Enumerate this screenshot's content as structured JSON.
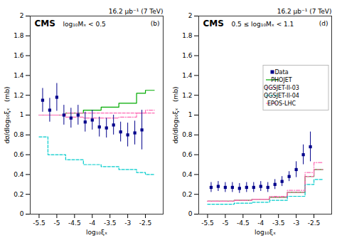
{
  "chart_data": [
    {
      "type": "step",
      "title": "16.2 μb⁻¹ (7 TeV)",
      "annotations": [
        "CMS",
        "log₁₀Mₓ < 0.5",
        "(b)"
      ],
      "xlabel": "log₁₀ξₓ",
      "ylabel": "dσ/dlog₁₀ξₓ   (mb)",
      "xlim": [
        -5.75,
        -2.0
      ],
      "ylim": [
        0,
        2
      ],
      "xticks": [
        -5.5,
        -5,
        -4.5,
        -4,
        -3.5,
        -3,
        -2.5
      ],
      "yticks": [
        0,
        0.2,
        0.4,
        0.6,
        0.8,
        1,
        1.2,
        1.4,
        1.6,
        1.8,
        2
      ],
      "series": [
        {
          "type": "step",
          "color": "#00AA00",
          "line_style": "solid",
          "bins": [
            -5.5,
            -5.25,
            -4.75,
            -4.25,
            -3.75,
            -3.25,
            -2.75,
            -2.5,
            -2.25
          ],
          "values": [
            1.0,
            1.0,
            1.02,
            1.05,
            1.08,
            1.12,
            1.22,
            1.25
          ]
        },
        {
          "type": "step",
          "color": "#FF69B4",
          "line_style": "dashed",
          "bins": [
            -5.5,
            -5.25,
            -4.75,
            -4.25,
            -3.75,
            -3.25,
            -2.75,
            -2.5,
            -2.25
          ],
          "values": [
            1.0,
            1.0,
            1.02,
            1.02,
            1.02,
            1.02,
            1.02,
            1.02
          ]
        },
        {
          "type": "step",
          "color": "#00CCCC",
          "line_style": "dashed",
          "bins": [
            -5.5,
            -5.25,
            -4.75,
            -4.25,
            -3.75,
            -3.25,
            -2.75,
            -2.5,
            -2.25
          ],
          "values": [
            0.78,
            0.6,
            0.55,
            0.5,
            0.48,
            0.45,
            0.42,
            0.4
          ]
        },
        {
          "type": "step",
          "color": "#FF69B4",
          "line_style": "dashdot",
          "bins": [
            -5.5,
            -5.25,
            -4.75,
            -4.25,
            -3.75,
            -3.25,
            -2.75,
            -2.5,
            -2.25
          ],
          "values": [
            1.0,
            1.0,
            0.98,
            0.97,
            0.97,
            0.98,
            1.02,
            1.05
          ]
        },
        {
          "type": "scatter",
          "color": "#00008B",
          "marker": "square",
          "x": [
            -5.4,
            -5.2,
            -5.0,
            -4.8,
            -4.6,
            -4.4,
            -4.2,
            -4.0,
            -3.8,
            -3.6,
            -3.4,
            -3.2,
            -3.0,
            -2.8,
            -2.6
          ],
          "values": [
            1.15,
            1.05,
            1.18,
            1.0,
            0.97,
            1.0,
            0.93,
            0.95,
            0.88,
            0.87,
            0.9,
            0.83,
            0.8,
            0.82,
            0.85
          ],
          "errors": [
            0.12,
            0.12,
            0.14,
            0.1,
            0.1,
            0.1,
            0.1,
            0.1,
            0.1,
            0.1,
            0.1,
            0.1,
            0.12,
            0.12,
            0.2
          ]
        }
      ]
    },
    {
      "type": "step",
      "title": "16.2 μb⁻¹ (7 TeV)",
      "annotations": [
        "CMS",
        "0.5 ≤ log₁₀Mₓ < 1.1",
        "(d)"
      ],
      "xlabel": "log₁₀ξₓ",
      "ylabel": "dσ/dlog₁₀ξₓ   (mb)",
      "xlim": [
        -5.75,
        -2.0
      ],
      "ylim": [
        0,
        2
      ],
      "xticks": [
        -5.5,
        -5,
        -4.5,
        -4,
        -3.5,
        -3,
        -2.5
      ],
      "yticks": [
        0,
        0.2,
        0.4,
        0.6,
        0.8,
        1,
        1.2,
        1.4,
        1.6,
        1.8,
        2
      ],
      "legend": "upper right",
      "series": [
        {
          "name": "Data",
          "type": "scatter",
          "color": "#00008B",
          "marker": "square",
          "x": [
            -5.4,
            -5.2,
            -5.0,
            -4.8,
            -4.6,
            -4.4,
            -4.2,
            -4.0,
            -3.8,
            -3.6,
            -3.4,
            -3.2,
            -3.0,
            -2.8,
            -2.6
          ],
          "values": [
            0.27,
            0.28,
            0.27,
            0.27,
            0.26,
            0.27,
            0.27,
            0.28,
            0.27,
            0.3,
            0.33,
            0.38,
            0.45,
            0.6,
            0.68
          ],
          "errors": [
            0.05,
            0.05,
            0.05,
            0.05,
            0.05,
            0.05,
            0.05,
            0.05,
            0.05,
            0.05,
            0.05,
            0.05,
            0.08,
            0.1,
            0.15
          ]
        },
        {
          "name": "PHOJET",
          "type": "step",
          "color": "#00AA00",
          "line_style": "solid",
          "bins": [
            -5.5,
            -5.25,
            -4.75,
            -4.25,
            -3.75,
            -3.25,
            -2.75,
            -2.5,
            -2.25
          ],
          "values": [
            0.13,
            0.13,
            0.14,
            0.15,
            0.17,
            0.22,
            0.38,
            0.45
          ]
        },
        {
          "name": "QGSJET-II-03",
          "type": "step",
          "color": "#FF69B4",
          "line_style": "dashed",
          "bins": [
            -5.5,
            -5.25,
            -4.75,
            -4.25,
            -3.75,
            -3.25,
            -2.75,
            -2.5,
            -2.25
          ],
          "values": [
            0.13,
            0.13,
            0.14,
            0.15,
            0.17,
            0.22,
            0.38,
            0.45
          ]
        },
        {
          "name": "QGSJET-II-04",
          "type": "step",
          "color": "#00CCCC",
          "line_style": "dashed",
          "bins": [
            -5.5,
            -5.25,
            -4.75,
            -4.25,
            -3.75,
            -3.25,
            -2.75,
            -2.5,
            -2.25
          ],
          "values": [
            0.1,
            0.1,
            0.11,
            0.12,
            0.14,
            0.18,
            0.3,
            0.35
          ]
        },
        {
          "name": "EPOS-LHC",
          "type": "step",
          "color": "#FF69B4",
          "line_style": "dashdot",
          "bins": [
            -5.5,
            -5.25,
            -4.75,
            -4.25,
            -3.75,
            -3.25,
            -2.75,
            -2.5,
            -2.25
          ],
          "values": [
            0.13,
            0.13,
            0.14,
            0.15,
            0.18,
            0.24,
            0.42,
            0.52
          ]
        }
      ]
    }
  ]
}
